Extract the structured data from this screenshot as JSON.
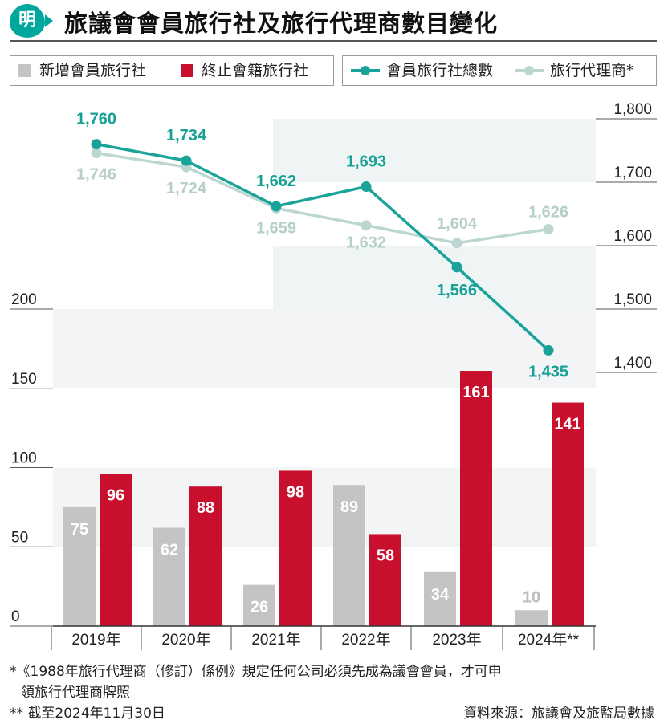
{
  "title": "旅議會會員旅行社及旅行代理商數目變化",
  "logo_text": "明",
  "legend": {
    "new_members": "新增會員旅行社",
    "terminated": "終止會籍旅行社",
    "total_members": "會員旅行社總數",
    "agents": "旅行代理商*"
  },
  "colors": {
    "new_members": "#c4c4c4",
    "terminated": "#c8102e",
    "total_members": "#1aa39a",
    "agents": "#bcd6d2",
    "accent": "#00a79d"
  },
  "chart_data": {
    "type": "bar+line",
    "categories": [
      "2019年",
      "2020年",
      "2021年",
      "2022年",
      "2023年",
      "2024年**"
    ],
    "bar_series": [
      {
        "name": "新增會員旅行社",
        "values": [
          75,
          62,
          26,
          89,
          34,
          10
        ]
      },
      {
        "name": "終止會籍旅行社",
        "values": [
          96,
          88,
          98,
          58,
          161,
          141
        ]
      }
    ],
    "line_series": [
      {
        "name": "會員旅行社總數",
        "values": [
          1760,
          1734,
          1662,
          1693,
          1566,
          1435
        ]
      },
      {
        "name": "旅行代理商*",
        "values": [
          1746,
          1724,
          1659,
          1632,
          1604,
          1626
        ]
      }
    ],
    "left_axis": {
      "ticks": [
        "0",
        "50",
        "100",
        "150",
        "200"
      ],
      "range": [
        0,
        200
      ]
    },
    "right_axis": {
      "ticks": [
        "1,400",
        "1,500",
        "1,600",
        "1,700",
        "1,800"
      ],
      "range": [
        1400,
        1800
      ]
    },
    "bar_labels": {
      "new_members": [
        "75",
        "62",
        "26",
        "89",
        "34",
        "10"
      ],
      "terminated": [
        "96",
        "88",
        "98",
        "58",
        "161",
        "141"
      ]
    },
    "line_labels": {
      "total_members": [
        "1,760",
        "1,734",
        "1,662",
        "1,693",
        "1,566",
        "1,435"
      ],
      "agents": [
        "1,746",
        "1,724",
        "1,659",
        "1,632",
        "1,604",
        "1,626"
      ]
    },
    "legend_position": "top"
  },
  "footnotes": {
    "note1_line1": "*《1988年旅行代理商（修訂）條例》規定任何公司必須先成為議會會員，才可申",
    "note1_line2": "領旅行代理商牌照",
    "note2": "** 截至2024年11月30日"
  },
  "source": "資料來源：旅議會及旅監局數據"
}
